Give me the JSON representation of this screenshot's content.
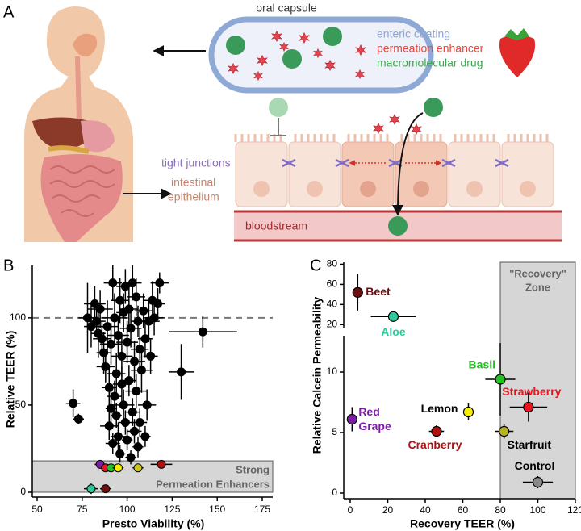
{
  "panel_labels": [
    "A",
    "B",
    "C"
  ],
  "diagram": {
    "capsule_title": "oral capsule",
    "legend": [
      "enteric coating",
      "permeation enhancer",
      "macromolecular drug"
    ],
    "tight_junctions": "tight junctions",
    "epithelium_lines": [
      "intestinal",
      "epithelium"
    ],
    "bloodstream": "bloodstream"
  },
  "chart_data": [
    {
      "type": "scatter",
      "x_label": "Presto Viability  (%)",
      "y_label": "Relative TEER (%)",
      "xlim": [
        50,
        175
      ],
      "xticks": [
        50,
        75,
        100,
        125,
        150,
        175
      ],
      "ylim": [
        0,
        130
      ],
      "yticks": [
        0,
        50,
        100
      ],
      "reference_line": 100,
      "band": {
        "y": [
          0,
          18
        ],
        "label_lines": [
          "Strong",
          "Permeation Enhancers"
        ]
      },
      "series": [
        {
          "color": "#000000",
          "x": [
            70,
            73,
            78,
            80,
            82,
            83,
            84,
            85,
            86,
            87,
            88,
            89,
            90,
            90,
            91,
            91,
            92,
            92,
            93,
            93,
            94,
            94,
            95,
            95,
            96,
            96,
            97,
            97,
            98,
            98,
            99,
            99,
            100,
            100,
            101,
            101,
            102,
            102,
            103,
            103,
            104,
            104,
            105,
            105,
            106,
            106,
            107,
            107,
            108,
            109,
            110,
            110,
            111,
            112,
            113,
            114,
            115,
            117,
            118,
            130,
            142
          ],
          "y": [
            51,
            42,
            100,
            95,
            108,
            98,
            91,
            105,
            88,
            80,
            72,
            95,
            60,
            38,
            48,
            85,
            28,
            120,
            100,
            55,
            68,
            44,
            90,
            32,
            110,
            22,
            78,
            62,
            103,
            50,
            118,
            40,
            86,
            30,
            105,
            64,
            94,
            20,
            120,
            46,
            75,
            35,
            112,
            58,
            98,
            26,
            82,
            40,
            70,
            104,
            88,
            32,
            50,
            98,
            78,
            110,
            100,
            108,
            120,
            69,
            92
          ],
          "xerr": [
            4,
            3,
            5,
            4,
            6,
            5,
            4,
            7,
            5,
            4,
            5,
            6,
            4,
            5,
            3,
            6,
            4,
            5,
            7,
            4,
            5,
            3,
            6,
            4,
            5,
            3,
            6,
            5,
            4,
            6,
            5,
            4,
            6,
            3,
            5,
            4,
            6,
            3,
            5,
            4,
            6,
            4,
            5,
            6,
            4,
            3,
            5,
            4,
            6,
            5,
            4,
            3,
            5,
            6,
            4,
            5,
            6,
            4,
            5,
            7,
            19
          ],
          "yerr": [
            8,
            3,
            20,
            12,
            10,
            9,
            14,
            11,
            10,
            12,
            9,
            15,
            13,
            8,
            10,
            12,
            6,
            10,
            14,
            9,
            12,
            7,
            11,
            8,
            13,
            5,
            12,
            10,
            11,
            9,
            10,
            7,
            12,
            6,
            13,
            9,
            11,
            4,
            10,
            8,
            12,
            7,
            11,
            10,
            9,
            6,
            12,
            8,
            13,
            10,
            11,
            6,
            9,
            12,
            10,
            11,
            10,
            9,
            6,
            16,
            9
          ]
        },
        {
          "colors": [
            "#2bc99b",
            "#6b0f0f",
            "#7b1fa2",
            "#e8141e",
            "#22c322",
            "#f5f000",
            "#c9c21a",
            "#b01010"
          ],
          "x": [
            80,
            88,
            85,
            88,
            91,
            95,
            106,
            119
          ],
          "y": [
            2,
            2,
            16,
            14,
            14,
            14,
            14,
            16
          ],
          "xerr": [
            4,
            3,
            3,
            2,
            2,
            3,
            3,
            6
          ],
          "yerr": [
            3,
            2,
            2,
            2,
            2,
            2,
            2,
            2
          ]
        }
      ]
    },
    {
      "type": "scatter",
      "x_label": "Recovery TEER (%)",
      "y_label": "Relative Calcein Permeability",
      "xlim": [
        0,
        120
      ],
      "xticks": [
        0,
        20,
        40,
        60,
        80,
        100,
        120
      ],
      "y_segments": [
        {
          "ylim": [
            0,
            13
          ],
          "yticks": [
            0,
            5,
            10
          ]
        },
        {
          "ylim": [
            17,
            82
          ],
          "yticks": [
            20,
            40,
            60,
            80
          ]
        }
      ],
      "zone": {
        "x": [
          80,
          120
        ],
        "label_lines": [
          "\"Recovery\"",
          "Zone"
        ]
      },
      "points": {
        "label_lines": [
          [
            "Beet"
          ],
          [
            "Aloe"
          ],
          [
            "Basil"
          ],
          [
            "Strawberry"
          ],
          [
            "Lemon"
          ],
          [
            "Red",
            "Grape"
          ],
          [
            "Cranberry"
          ],
          [
            "Starfruit"
          ],
          [
            "Control"
          ]
        ],
        "colors": [
          "#6b0f0f",
          "#2bc99b",
          "#22c322",
          "#e8141e",
          "#f5f000",
          "#7b1fa2",
          "#b01010",
          "#b5b520",
          "#8a8a8a"
        ],
        "label_colors": [
          "#6b0f0f",
          "#2bc99b",
          "#22c322",
          "#e8141e",
          "#000000",
          "#7b1fa2",
          "#b01010",
          "#000000",
          "#000000"
        ],
        "x": [
          4,
          23,
          80,
          95,
          63,
          1,
          46,
          82,
          100
        ],
        "y": [
          52,
          28,
          9.4,
          7.1,
          6.7,
          6.1,
          5.1,
          5.1,
          0.9
        ],
        "xerr": [
          1,
          12,
          8,
          10,
          2,
          1,
          4,
          5,
          8
        ],
        "yerr": [
          18,
          2,
          3,
          1.2,
          0.7,
          1,
          0.5,
          0.6,
          0.5
        ]
      }
    }
  ]
}
